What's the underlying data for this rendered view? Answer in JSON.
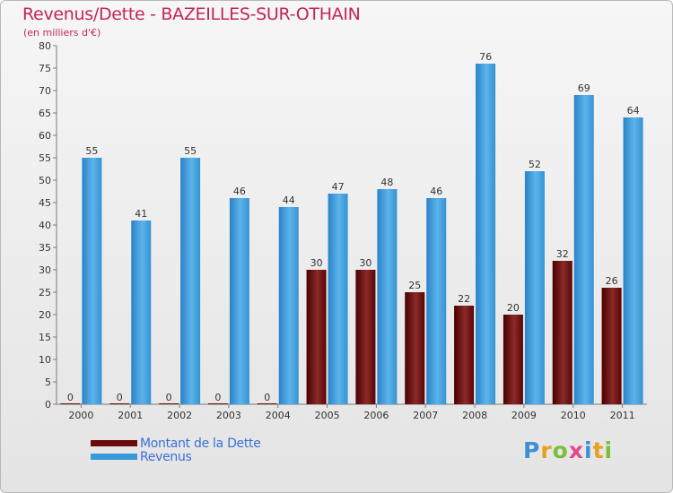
{
  "chart_data": {
    "type": "bar",
    "title": "Revenus/Dette - BAZEILLES-SUR-OTHAIN",
    "subtitle": "(en milliers d'€)",
    "categories": [
      "2000",
      "2001",
      "2002",
      "2003",
      "2004",
      "2005",
      "2006",
      "2007",
      "2008",
      "2009",
      "2010",
      "2011"
    ],
    "series": [
      {
        "name": "Montant de la Dette",
        "color": "#6b0a0a",
        "values": [
          0,
          0,
          0,
          0,
          0,
          30,
          30,
          25,
          22,
          20,
          32,
          26
        ]
      },
      {
        "name": "Revenus",
        "color": "#3a9ad9",
        "values": [
          55,
          41,
          55,
          46,
          44,
          47,
          48,
          46,
          76,
          52,
          69,
          64
        ]
      }
    ],
    "ylim": [
      0,
      80
    ],
    "yticks": [
      0,
      5,
      10,
      15,
      20,
      25,
      30,
      35,
      40,
      45,
      50,
      55,
      60,
      65,
      70,
      75,
      80
    ],
    "grid": false,
    "legend_position": "bottom-left",
    "xlabel": "",
    "ylabel": ""
  },
  "logo": {
    "text": "Proxiti",
    "letters": [
      {
        "ch": "P",
        "color": "#3d8fd6"
      },
      {
        "ch": "r",
        "color": "#e8a020"
      },
      {
        "ch": "o",
        "color": "#7bbd3b"
      },
      {
        "ch": "x",
        "color": "#e04c8a"
      },
      {
        "ch": "i",
        "color": "#3d8fd6"
      },
      {
        "ch": "t",
        "color": "#e8a020"
      },
      {
        "ch": "i",
        "color": "#7bbd3b"
      }
    ]
  }
}
